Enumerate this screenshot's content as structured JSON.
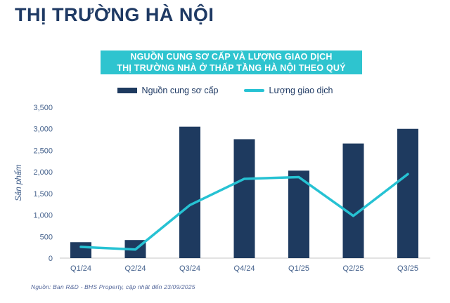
{
  "page": {
    "title": "THỊ TRƯỜNG HÀ NỘI",
    "source_note": "Nguồn: Ban R&D - BHS Property, cập nhật đến 23/09/2025"
  },
  "banner": {
    "line1": "NGUỒN CUNG SƠ CẤP VÀ LƯỢNG GIAO DỊCH",
    "line2": "THỊ TRƯỜNG NHÀ Ở THẤP TẦNG HÀ NỘI THEO QUÝ"
  },
  "colors": {
    "title_navy": "#1f3a64",
    "bar_navy": "#1e3a5f",
    "banner_teal": "#2ec4cf",
    "line_teal": "#26c2d3",
    "axis_line_gray": "#d9d9d9",
    "tick_text_blue": "#44618c"
  },
  "chart_data": {
    "type": "bar",
    "title": "NGUỒN CUNG SƠ CẤP VÀ LƯỢNG GIAO DỊCH THỊ TRƯỜNG NHÀ Ở THẤP TẦNG HÀ NỘI THEO QUÝ",
    "categories": [
      "Q1/24",
      "Q2/24",
      "Q3/24",
      "Q4/24",
      "Q1/25",
      "Q2/25",
      "Q3/25"
    ],
    "series": [
      {
        "name": "Nguồn cung sơ cấp",
        "type": "bar",
        "color": "#1e3a5f",
        "values": [
          370,
          420,
          3050,
          2760,
          2030,
          2660,
          3000
        ]
      },
      {
        "name": "Lượng giao dịch",
        "type": "line",
        "color": "#26c2d3",
        "values": [
          260,
          200,
          1230,
          1840,
          1880,
          980,
          1950
        ]
      }
    ],
    "xlabel": "",
    "ylabel": "Sản phẩm",
    "ylim": [
      0,
      3500
    ],
    "ytick_step": 500,
    "grid": false,
    "legend_position": "top"
  }
}
